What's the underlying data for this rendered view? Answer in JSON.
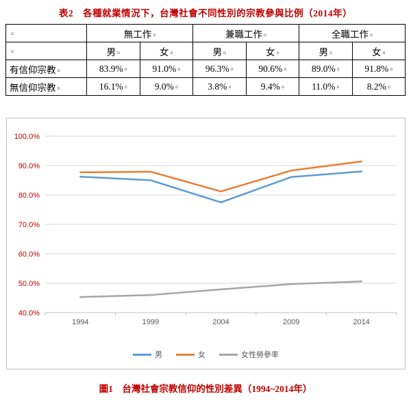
{
  "page": {
    "table_title": "表2　各種就業情況下，台灣社會不同性別的宗教參與比例（2014年）",
    "figure_caption": "圖1　台灣社會宗教信仰的性別差異（1994~2014年）",
    "title_color": "#C00000",
    "caption_color": "#C00000"
  },
  "table": {
    "group_headers": [
      "無工作",
      "兼職工作",
      "全職工作"
    ],
    "sub_headers": [
      "男",
      "女",
      "男",
      "女",
      "男",
      "女"
    ],
    "rows": [
      {
        "label": "有信仰宗教",
        "values": [
          "83.9%",
          "91.0%",
          "96.3%",
          "90.6%",
          "89.0%",
          "91.8%"
        ]
      },
      {
        "label": "無信仰宗教",
        "values": [
          "16.1%",
          "9.0%",
          "3.8%",
          "9.4%",
          "11.0%",
          "8.2%"
        ]
      }
    ],
    "cell_mark": "¤",
    "border_color": "#000000"
  },
  "chart_data": {
    "type": "line",
    "x": [
      "1994",
      "1999",
      "2004",
      "2009",
      "2014"
    ],
    "series": [
      {
        "name": "男",
        "color": "#5B9BD5",
        "values": [
          86.2,
          85.0,
          77.5,
          86.1,
          88.0
        ]
      },
      {
        "name": "女",
        "color": "#ED7D31",
        "values": [
          87.7,
          87.9,
          81.2,
          88.3,
          91.4
        ]
      },
      {
        "name": "女性勞參率",
        "color": "#A5A5A5",
        "values": [
          45.3,
          46.0,
          47.9,
          49.7,
          50.6
        ]
      }
    ],
    "ylim": [
      40,
      100
    ],
    "ytick_step": 10,
    "ytick_labels": [
      "40.0%",
      "50.0%",
      "60.0%",
      "70.0%",
      "80.0%",
      "90.0%",
      "100.0%"
    ],
    "grid": true,
    "gridline_color": "#D9D9D9",
    "axis_line_color": "#BFBFBF",
    "y_label_color": "#C00000",
    "x_label_color": "#595959",
    "legend_position": "bottom",
    "title": "",
    "xlabel": "",
    "ylabel": ""
  }
}
